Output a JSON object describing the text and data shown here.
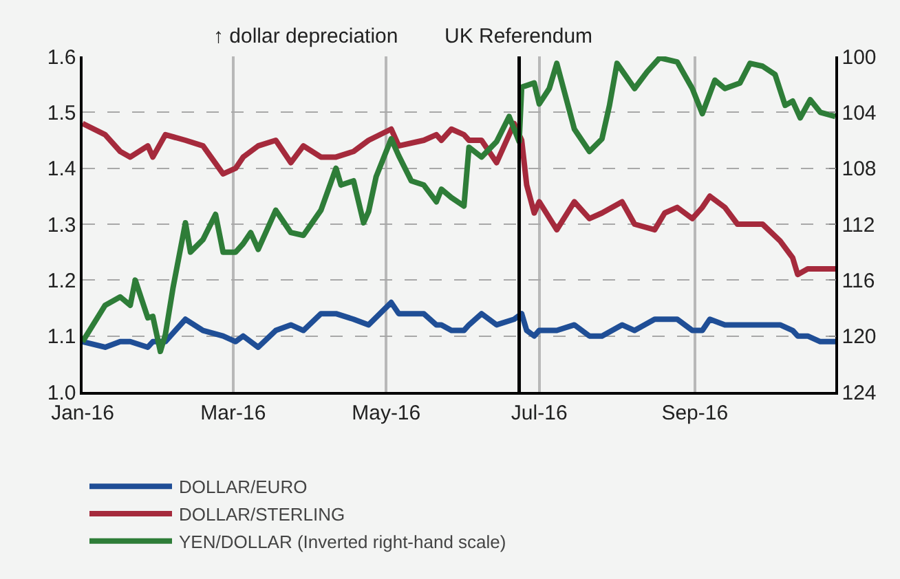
{
  "chart_data": {
    "type": "line",
    "annotations": [
      "↑ dollar depreciation"
    ],
    "ref_lines": [
      {
        "axis": "x",
        "value": "2016-06-23",
        "label": "UK Referendum",
        "color": "#000000"
      }
    ],
    "xlim": [
      "2016-01-01",
      "2016-10-27"
    ],
    "xticks": [
      {
        "value": "2016-01-01",
        "label": "Jan-16"
      },
      {
        "value": "2016-03-01",
        "label": "Mar-16"
      },
      {
        "value": "2016-05-01",
        "label": "May-16"
      },
      {
        "value": "2016-07-01",
        "label": "Jul-16"
      },
      {
        "value": "2016-09-01",
        "label": "Sep-16"
      }
    ],
    "ylim": [
      1.0,
      1.6
    ],
    "yticks": [
      {
        "value": 1.0,
        "label": "1.0"
      },
      1.1,
      1.2,
      1.3,
      1.4,
      1.5,
      1.6
    ],
    "y2lim": [
      124,
      100
    ],
    "y2ticks": [
      100,
      104,
      108,
      112,
      116,
      120,
      124
    ],
    "grid": true,
    "legend": "bottom",
    "x": [
      "2016-01-01",
      "2016-01-10",
      "2016-01-16",
      "2016-01-20",
      "2016-01-27",
      "2016-01-29",
      "2016-02-03",
      "2016-02-11",
      "2016-02-18",
      "2016-02-26",
      "2016-03-02",
      "2016-03-05",
      "2016-03-11",
      "2016-03-18",
      "2016-03-24",
      "2016-03-29",
      "2016-04-05",
      "2016-04-11",
      "2016-04-18",
      "2016-04-24",
      "2016-05-03",
      "2016-05-06",
      "2016-05-16",
      "2016-05-21",
      "2016-05-23",
      "2016-05-27",
      "2016-06-01",
      "2016-06-03",
      "2016-06-08",
      "2016-06-14",
      "2016-06-21",
      "2016-06-24",
      "2016-06-26",
      "2016-06-29",
      "2016-07-01",
      "2016-07-08",
      "2016-07-15",
      "2016-07-21",
      "2016-07-26",
      "2016-08-03",
      "2016-08-08",
      "2016-08-16",
      "2016-08-20",
      "2016-08-25",
      "2016-08-31",
      "2016-09-04",
      "2016-09-07",
      "2016-09-13",
      "2016-09-18",
      "2016-09-28",
      "2016-10-05",
      "2016-10-10",
      "2016-10-12",
      "2016-10-16",
      "2016-10-21",
      "2016-10-27"
    ],
    "series": [
      {
        "name": "DOLLAR/EURO",
        "color": "#1f4e96",
        "values": [
          1.09,
          1.08,
          1.09,
          1.09,
          1.08,
          1.09,
          1.09,
          1.13,
          1.11,
          1.1,
          1.09,
          1.1,
          1.08,
          1.11,
          1.12,
          1.11,
          1.14,
          1.14,
          1.13,
          1.12,
          1.16,
          1.14,
          1.14,
          1.12,
          1.12,
          1.11,
          1.11,
          1.12,
          1.14,
          1.12,
          1.13,
          1.14,
          1.11,
          1.1,
          1.11,
          1.11,
          1.12,
          1.1,
          1.1,
          1.12,
          1.11,
          1.13,
          1.13,
          1.13,
          1.11,
          1.11,
          1.13,
          1.12,
          1.12,
          1.12,
          1.12,
          1.11,
          1.1,
          1.1,
          1.09,
          1.09
        ]
      },
      {
        "name": "DOLLAR/STERLING",
        "color": "#a52a3c",
        "values": [
          1.48,
          1.46,
          1.43,
          1.42,
          1.44,
          1.42,
          1.46,
          1.45,
          1.44,
          1.39,
          1.4,
          1.42,
          1.44,
          1.45,
          1.41,
          1.44,
          1.42,
          1.42,
          1.43,
          1.45,
          1.47,
          1.44,
          1.45,
          1.46,
          1.45,
          1.47,
          1.46,
          1.45,
          1.45,
          1.41,
          1.48,
          1.45,
          1.37,
          1.32,
          1.34,
          1.29,
          1.34,
          1.31,
          1.32,
          1.34,
          1.3,
          1.29,
          1.32,
          1.33,
          1.31,
          1.33,
          1.35,
          1.33,
          1.3,
          1.3,
          1.27,
          1.24,
          1.21,
          1.22,
          1.22,
          1.22
        ]
      },
      {
        "name": "YEN/DOLLAR (Inverted right-hand scale)",
        "color": "#2e7d38",
        "axis": "y2",
        "x": [
          "2016-01-01",
          "2016-01-10",
          "2016-01-16",
          "2016-01-20",
          "2016-01-22",
          "2016-01-27",
          "2016-01-29",
          "2016-02-01",
          "2016-02-03",
          "2016-02-06",
          "2016-02-11",
          "2016-02-13",
          "2016-02-18",
          "2016-02-23",
          "2016-02-26",
          "2016-03-02",
          "2016-03-05",
          "2016-03-08",
          "2016-03-11",
          "2016-03-18",
          "2016-03-24",
          "2016-03-29",
          "2016-04-05",
          "2016-04-11",
          "2016-04-13",
          "2016-04-18",
          "2016-04-22",
          "2016-04-24",
          "2016-04-27",
          "2016-05-03",
          "2016-05-06",
          "2016-05-11",
          "2016-05-16",
          "2016-05-21",
          "2016-05-23",
          "2016-05-27",
          "2016-06-01",
          "2016-06-03",
          "2016-06-08",
          "2016-06-14",
          "2016-06-19",
          "2016-06-23",
          "2016-06-24",
          "2016-06-29",
          "2016-07-01",
          "2016-07-05",
          "2016-07-08",
          "2016-07-15",
          "2016-07-21",
          "2016-07-26",
          "2016-07-29",
          "2016-08-01",
          "2016-08-08",
          "2016-08-13",
          "2016-08-18",
          "2016-08-25",
          "2016-08-31",
          "2016-09-04",
          "2016-09-09",
          "2016-09-13",
          "2016-09-19",
          "2016-09-23",
          "2016-09-28",
          "2016-10-03",
          "2016-10-07",
          "2016-10-10",
          "2016-10-13",
          "2016-10-17",
          "2016-10-21",
          "2016-10-27"
        ],
        "values": [
          120.4,
          117.8,
          117.2,
          117.8,
          116.0,
          118.7,
          118.6,
          121.1,
          119.9,
          116.6,
          111.9,
          114.0,
          113.1,
          111.3,
          114.0,
          114.0,
          113.4,
          112.6,
          113.8,
          111.0,
          112.6,
          112.8,
          111.0,
          108.0,
          109.2,
          108.9,
          111.9,
          111.1,
          108.6,
          105.9,
          107.1,
          108.9,
          109.2,
          110.4,
          109.5,
          110.1,
          110.7,
          106.5,
          107.2,
          106.1,
          104.3,
          106.1,
          102.2,
          101.9,
          103.4,
          102.3,
          100.5,
          105.2,
          106.8,
          105.9,
          103.5,
          100.5,
          102.3,
          101.1,
          100.1,
          100.4,
          102.3,
          104.1,
          101.7,
          102.3,
          101.9,
          100.5,
          100.7,
          101.3,
          103.5,
          103.2,
          104.4,
          103.1,
          104.0,
          104.3
        ]
      }
    ]
  }
}
